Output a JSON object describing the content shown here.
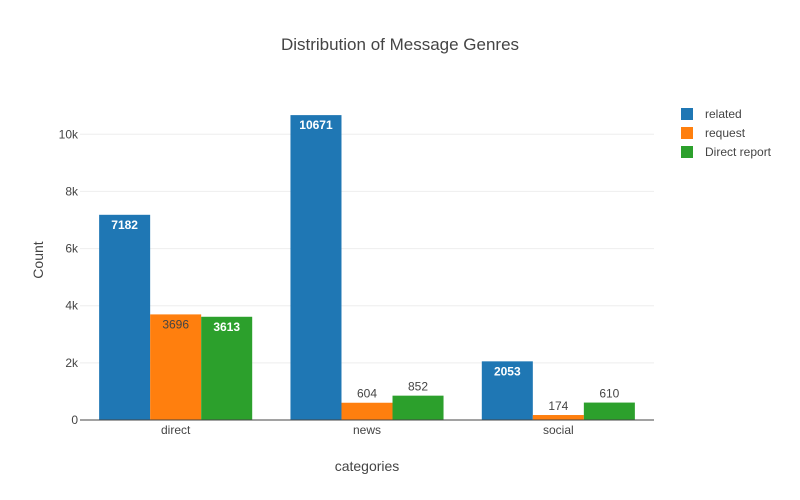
{
  "chart_data": {
    "type": "bar",
    "title": "Distribution of Message Genres",
    "xlabel": "categories",
    "ylabel": "Count",
    "categories": [
      "direct",
      "news",
      "social"
    ],
    "ylim": [
      0,
      11200
    ],
    "yticks": [
      0,
      2000,
      4000,
      6000,
      8000,
      10000
    ],
    "ytick_labels": [
      "0",
      "2k",
      "4k",
      "6k",
      "8k",
      "10k"
    ],
    "grid": true,
    "legend_position": "top-right",
    "series": [
      {
        "name": "related",
        "color": "#1f77b4",
        "values": [
          7182,
          10671,
          2053
        ]
      },
      {
        "name": "request",
        "color": "#ff7f0e",
        "values": [
          3696,
          604,
          174
        ]
      },
      {
        "name": "Direct report",
        "color": "#2ca02c",
        "values": [
          3613,
          852,
          610
        ]
      }
    ]
  }
}
